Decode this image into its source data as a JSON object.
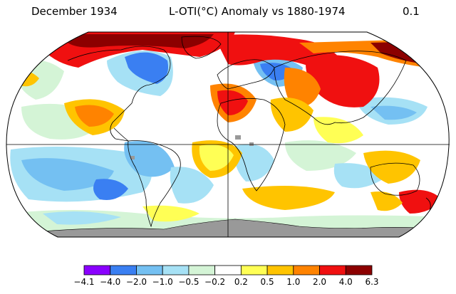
{
  "header": {
    "date": "December 1934",
    "title": "L-OTI(°C) Anomaly vs 1880-1974",
    "global_mean": "0.1"
  },
  "legend": {
    "ticks": [
      "−4.1",
      "−4.0",
      "−2.0",
      "−1.0",
      "−0.5",
      "−0.2",
      "0.2",
      "0.5",
      "1.0",
      "2.0",
      "4.0",
      "6.3"
    ],
    "colors": [
      "#8a00ff",
      "#3a7ff2",
      "#74c0f2",
      "#a6e1f5",
      "#d4f4d6",
      "#ffffff",
      "#ffff55",
      "#ffc400",
      "#ff8300",
      "#f01010",
      "#8c0000"
    ]
  },
  "map": {
    "projection": "Robinson",
    "land_outline_color": "#000000",
    "no_data_color": "#999999"
  }
}
